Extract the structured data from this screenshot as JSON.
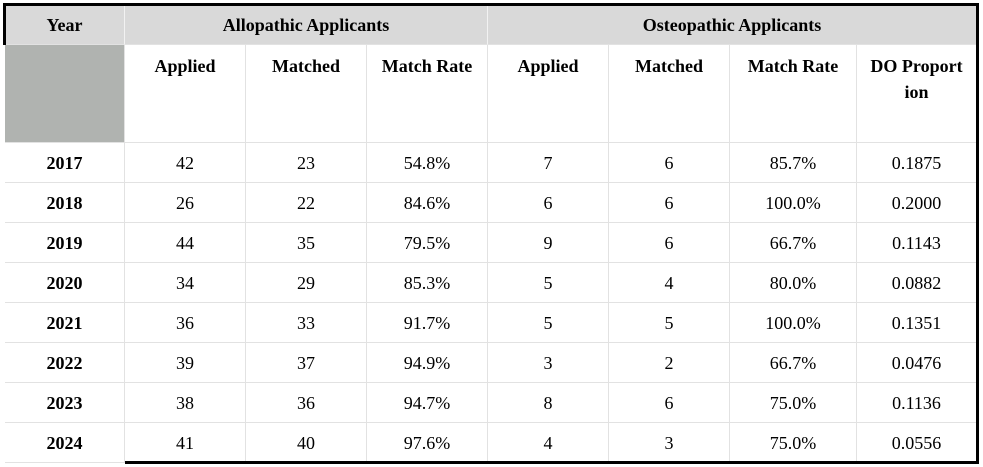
{
  "table": {
    "header": {
      "year": "Year",
      "allopathic": "Allopathic Applicants",
      "osteopathic": "Osteopathic Applicants"
    },
    "subheader": [
      "Applied",
      "Matched",
      "Match Rate",
      "Applied",
      "Matched",
      "Match Rate",
      "DO Proportion"
    ],
    "rows": [
      [
        "2017",
        "42",
        "23",
        "54.8%",
        "7",
        "6",
        "85.7%",
        "0.1875"
      ],
      [
        "2018",
        "26",
        "22",
        "84.6%",
        "6",
        "6",
        "100.0%",
        "0.2000"
      ],
      [
        "2019",
        "44",
        "35",
        "79.5%",
        "9",
        "6",
        "66.7%",
        "0.1143"
      ],
      [
        "2020",
        "34",
        "29",
        "85.3%",
        "5",
        "4",
        "80.0%",
        "0.0882"
      ],
      [
        "2021",
        "36",
        "33",
        "91.7%",
        "5",
        "5",
        "100.0%",
        "0.1351"
      ],
      [
        "2022",
        "39",
        "37",
        "94.9%",
        "3",
        "2",
        "66.7%",
        "0.0476"
      ],
      [
        "2023",
        "38",
        "36",
        "94.7%",
        "8",
        "6",
        "75.0%",
        "0.1136"
      ],
      [
        "2024",
        "41",
        "40",
        "97.6%",
        "4",
        "3",
        "75.0%",
        "0.0556"
      ]
    ]
  }
}
